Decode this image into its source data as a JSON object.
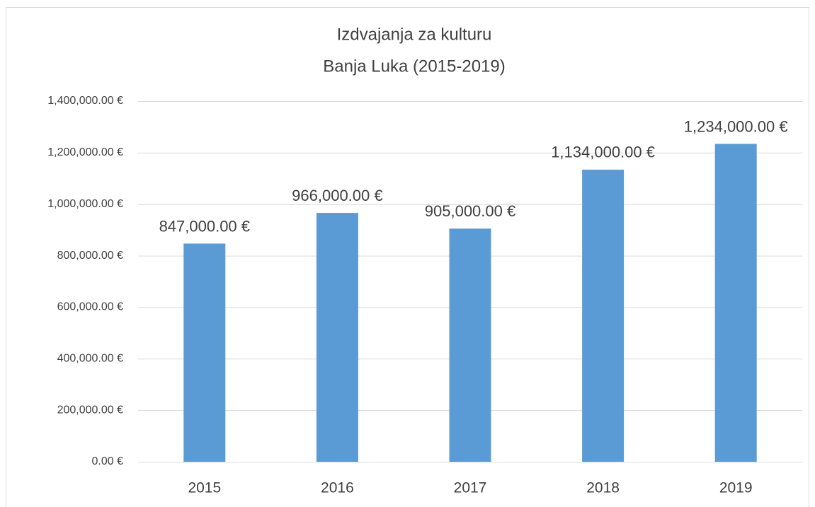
{
  "chart_data": {
    "type": "bar",
    "title": "Izdvajanja za kulturu",
    "subtitle": "Banja Luka (2015-2019)",
    "categories": [
      "2015",
      "2016",
      "2017",
      "2018",
      "2019"
    ],
    "values": [
      847000,
      966000,
      905000,
      1134000,
      1234000
    ],
    "value_labels": [
      "847,000.00 €",
      "966,000.00 €",
      "905,000.00 €",
      "1,134,000.00 €",
      "1,234,000.00 €"
    ],
    "color": "#5b9bd5",
    "ylim": [
      0,
      1400000
    ],
    "yticks": [
      {
        "value": 0,
        "label": "0.00 €"
      },
      {
        "value": 200000,
        "label": "200,000.00 €"
      },
      {
        "value": 400000,
        "label": "400,000.00 €"
      },
      {
        "value": 600000,
        "label": "600,000.00 €"
      },
      {
        "value": 800000,
        "label": "800,000.00 €"
      },
      {
        "value": 1000000,
        "label": "1,000,000.00 €"
      },
      {
        "value": 1200000,
        "label": "1,200,000.00 €"
      },
      {
        "value": 1400000,
        "label": "1,400,000.00 €"
      }
    ],
    "grid": true
  }
}
